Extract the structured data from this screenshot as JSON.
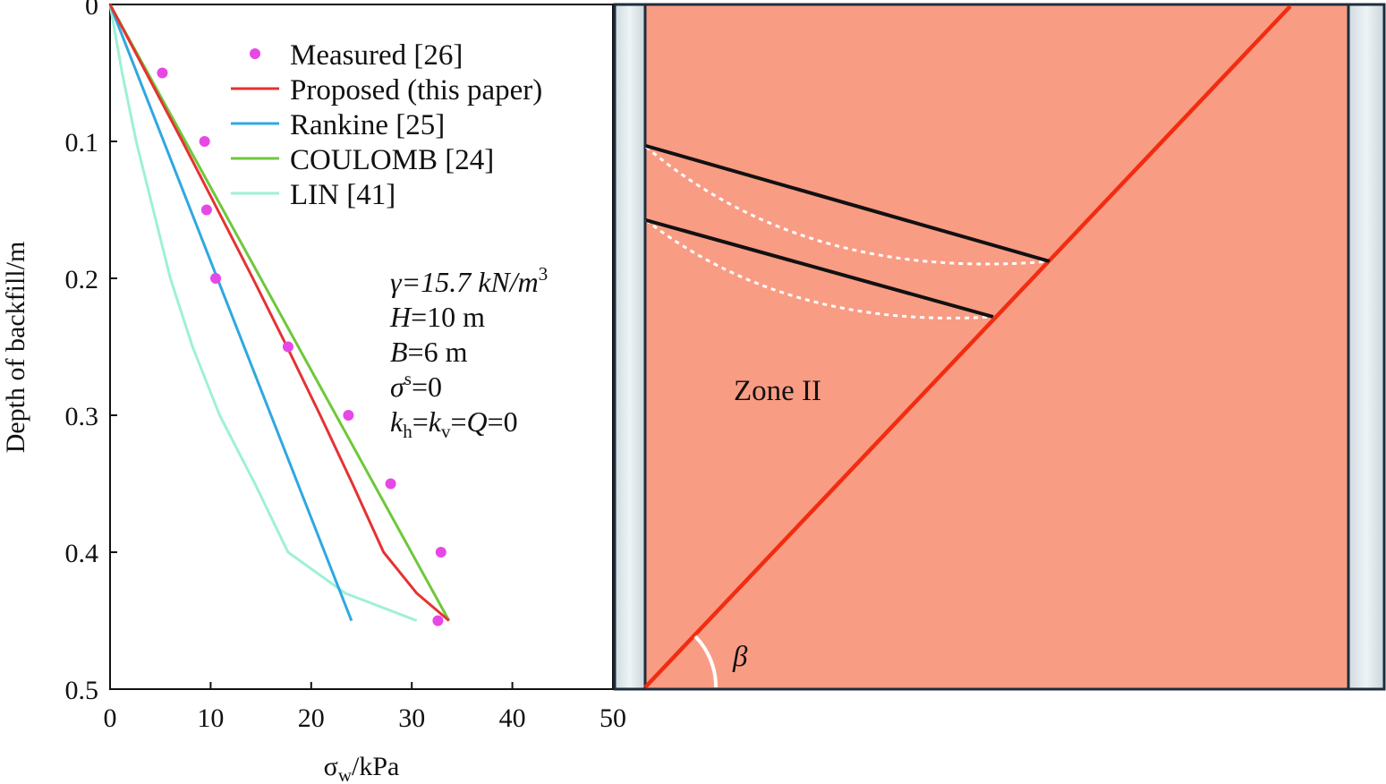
{
  "chart_data": [
    {
      "type": "line",
      "xlabel": "σw/kPa",
      "ylabel": "Depth of backfill/m",
      "xlim": [
        0,
        50
      ],
      "ylim": [
        0,
        0.5
      ],
      "y_inverted": true,
      "x_ticks": [
        "0",
        "10",
        "20",
        "30",
        "40",
        "50"
      ],
      "y_ticks": [
        "0",
        "0.1",
        "0.2",
        "0.3",
        "0.4",
        "0.5"
      ],
      "legend_position": "top-right",
      "grid": false,
      "series": [
        {
          "name": "Measured [26]",
          "kind": "scatter",
          "color": "#e648e6",
          "points": [
            [
              5.2,
              0.05
            ],
            [
              9.4,
              0.1
            ],
            [
              9.6,
              0.15
            ],
            [
              10.5,
              0.2
            ],
            [
              17.7,
              0.25
            ],
            [
              23.7,
              0.3
            ],
            [
              27.9,
              0.35
            ],
            [
              32.9,
              0.4
            ],
            [
              32.6,
              0.45
            ]
          ]
        },
        {
          "name": "Proposed (this paper)",
          "kind": "line",
          "color": "#e53232",
          "points": [
            [
              0,
              0
            ],
            [
              3.6,
              0.05
            ],
            [
              7.2,
              0.1
            ],
            [
              10.7,
              0.15
            ],
            [
              14.2,
              0.2
            ],
            [
              17.6,
              0.25
            ],
            [
              20.9,
              0.3
            ],
            [
              24.1,
              0.35
            ],
            [
              27.2,
              0.4
            ],
            [
              30.5,
              0.43
            ],
            [
              33.7,
              0.45
            ]
          ]
        },
        {
          "name": "Rankine [25]",
          "kind": "line",
          "color": "#2fa8e0",
          "points": [
            [
              0,
              0
            ],
            [
              24.0,
              0.45
            ]
          ]
        },
        {
          "name": "COULOMB [24]",
          "kind": "line",
          "color": "#6ec83a",
          "points": [
            [
              0,
              0
            ],
            [
              33.7,
              0.45
            ]
          ]
        },
        {
          "name": "LIN [41]",
          "kind": "line",
          "color": "#9ef0d8",
          "points": [
            [
              0,
              0
            ],
            [
              1.2,
              0.05
            ],
            [
              2.6,
              0.1
            ],
            [
              4.3,
              0.15
            ],
            [
              6.0,
              0.2
            ],
            [
              8.2,
              0.25
            ],
            [
              10.9,
              0.3
            ],
            [
              14.4,
              0.35
            ],
            [
              17.7,
              0.4
            ],
            [
              23.4,
              0.43
            ],
            [
              30.5,
              0.45
            ]
          ]
        }
      ],
      "annotations": {
        "gamma": "γ=15.7 kN/m",
        "gamma_sup": "3",
        "H": "H",
        "H_val": "=10 m",
        "B": "B",
        "B_val": "=6 m",
        "sigma": "σ",
        "sigma_sup": "s",
        "sigma_val": "=0",
        "k": "k",
        "k_h_sub": "h",
        "eq1": "=",
        "k_v_sub": "v",
        "eq2": "=",
        "Q": "Q",
        "Q_val": "=0"
      }
    },
    {
      "type": "diagram",
      "zone_label": "Zone II",
      "angle_label": "β",
      "fill_color": "#f99c84",
      "wall_color": "#dce6ea",
      "slip_line_color": "#f22c10",
      "layer_line_color": "#111111",
      "arch_color": "#ffffff"
    }
  ]
}
